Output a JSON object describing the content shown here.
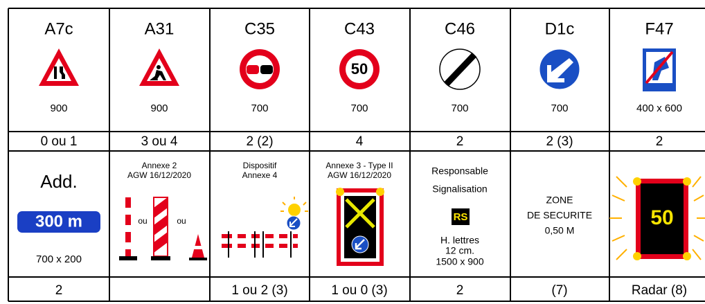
{
  "table": {
    "row1": [
      {
        "code": "A7c",
        "size": "900"
      },
      {
        "code": "A31",
        "size": "900"
      },
      {
        "code": "C35",
        "size": "700"
      },
      {
        "code": "C43",
        "size": "700",
        "sign_text": "50"
      },
      {
        "code": "C46",
        "size": "700"
      },
      {
        "code": "D1c",
        "size": "700"
      },
      {
        "code": "F47",
        "size": "400 x 600"
      }
    ],
    "row2": [
      "0 ou 1",
      "3 ou 4",
      "2 (2)",
      "4",
      "2",
      "2 (3)",
      "2"
    ],
    "row3": [
      {
        "title": "Add.",
        "badge": "300 m",
        "size": "700 x 200"
      },
      {
        "lines": [
          "Annexe 2",
          "AGW 16/12/2020"
        ],
        "labels": [
          "ou",
          "ou"
        ]
      },
      {
        "lines": [
          "Dispositif",
          "Annexe 4"
        ]
      },
      {
        "lines": [
          "Annexe 3 - Type II",
          "AGW 16/12/2020"
        ]
      },
      {
        "lines": [
          "Responsable",
          "Signalisation"
        ],
        "badge": "RS",
        "notes": [
          "H. lettres",
          "12 cm.",
          "1500 x 900"
        ]
      },
      {
        "lines": [
          "ZONE",
          "DE SECURITE",
          "0,50 M"
        ]
      },
      {
        "badge": "50"
      }
    ],
    "row4": [
      "2",
      null,
      "1 ou 2 (3)",
      "1 ou 0 (3)",
      "2",
      "(7)",
      "Radar (8)"
    ]
  }
}
